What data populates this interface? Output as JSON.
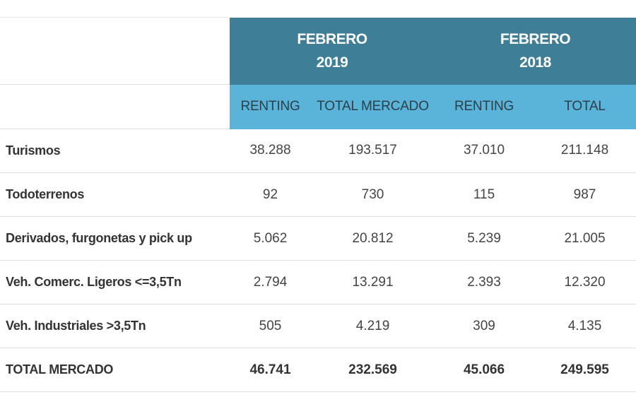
{
  "chart_data": {
    "type": "table",
    "header_groups": [
      {
        "line1": "FEBRERO",
        "line2": "2019"
      },
      {
        "line1": "FEBRERO",
        "line2": "2018"
      }
    ],
    "columns": [
      "RENTING",
      "TOTAL MERCADO",
      "RENTING",
      "TOTAL"
    ],
    "rows": [
      {
        "label": "Turismos",
        "values": [
          "38.288",
          "193.517",
          "37.010",
          "211.148"
        ]
      },
      {
        "label": "Todoterrenos",
        "values": [
          "92",
          "730",
          "115",
          "987"
        ]
      },
      {
        "label": "Derivados, furgonetas y pick up",
        "values": [
          "5.062",
          "20.812",
          "5.239",
          "21.005"
        ]
      },
      {
        "label": "Veh. Comerc. Ligeros <=3,5Tn",
        "values": [
          "2.794",
          "13.291",
          "2.393",
          "12.320"
        ]
      },
      {
        "label": "Veh. Industriales >3,5Tn",
        "values": [
          "505",
          "4.219",
          "309",
          "4.135"
        ]
      },
      {
        "label": "TOTAL MERCADO",
        "values": [
          "46.741",
          "232.569",
          "45.066",
          "249.595"
        ]
      }
    ],
    "colors": {
      "group_header": "#3e7f97",
      "column_header": "#5ab4d9"
    }
  }
}
